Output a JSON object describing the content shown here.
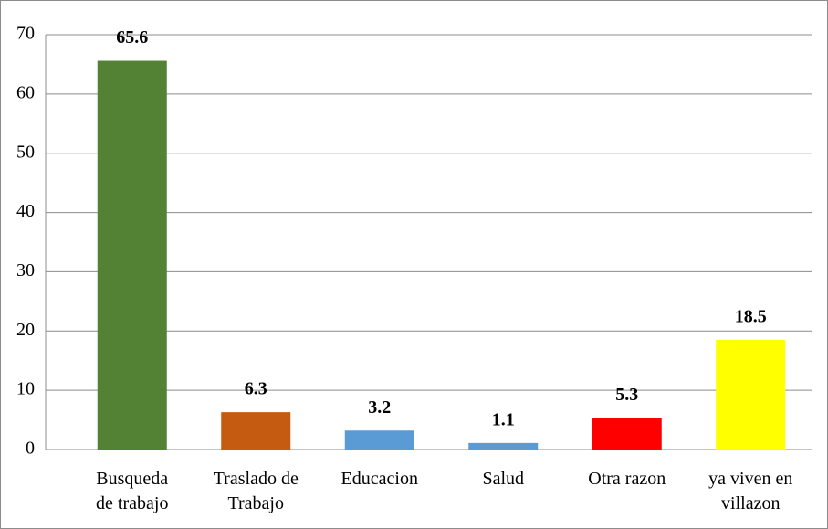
{
  "chart_data": {
    "type": "bar",
    "categories": [
      "Busqueda\nde trabajo",
      "Traslado de\nTrabajo",
      "Educacion",
      "Salud",
      "Otra razon",
      "ya viven en\nvillazon"
    ],
    "values": [
      65.6,
      6.3,
      3.2,
      1.1,
      5.3,
      18.5
    ],
    "colors": [
      "#548235",
      "#c55a11",
      "#5b9bd5",
      "#5b9bd5",
      "#ff0000",
      "#ffff00"
    ],
    "ylim": [
      0,
      70
    ],
    "yticks": [
      0,
      10,
      20,
      30,
      40,
      50,
      60,
      70
    ],
    "grid": true
  }
}
